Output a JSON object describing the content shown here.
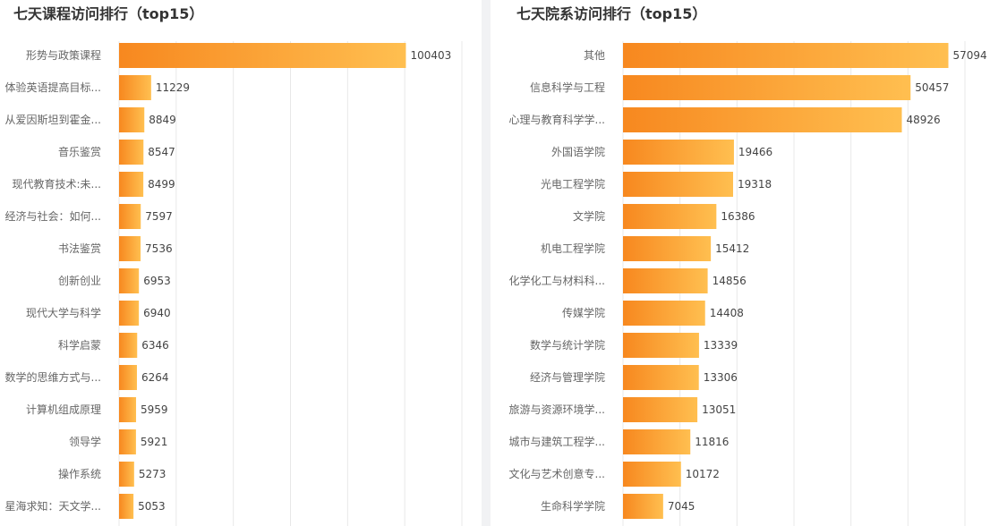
{
  "chart_data": [
    {
      "type": "bar",
      "orientation": "horizontal",
      "title": "七天课程访问排行（top15）",
      "categories": [
        "形势与政策课程",
        "体验英语提高目标...",
        "从爱因斯坦到霍金...",
        "音乐鉴赏",
        "现代教育技术:未...",
        "经济与社会：如何...",
        "书法鉴赏",
        "创新创业",
        "现代大学与科学",
        "科学启蒙",
        "数学的思维方式与...",
        "计算机组成原理",
        "领导学",
        "操作系统",
        "星海求知：天文学..."
      ],
      "values": [
        100403,
        11229,
        8849,
        8547,
        8499,
        7597,
        7536,
        6953,
        6940,
        6346,
        6264,
        5959,
        5921,
        5273,
        5053
      ],
      "xlim": [
        0,
        120000
      ],
      "grid": true,
      "gradient": [
        "#f7881f",
        "#ffbf50"
      ]
    },
    {
      "type": "bar",
      "orientation": "horizontal",
      "title": "七天院系访问排行（top15）",
      "categories": [
        "其他",
        "信息科学与工程",
        "心理与教育科学学...",
        "外国语学院",
        "光电工程学院",
        "文学院",
        "机电工程学院",
        "化学化工与材料科...",
        "传媒学院",
        "数学与统计学院",
        "经济与管理学院",
        "旅游与资源环境学...",
        "城市与建筑工程学...",
        "文化与艺术创意专...",
        "生命科学学院"
      ],
      "values": [
        57094,
        50457,
        48926,
        19466,
        19318,
        16386,
        15412,
        14856,
        14408,
        13339,
        13306,
        13051,
        11816,
        10172,
        7045
      ],
      "xlim": [
        0,
        60000
      ],
      "grid": true,
      "gradient": [
        "#f7881f",
        "#ffbf50"
      ]
    }
  ]
}
